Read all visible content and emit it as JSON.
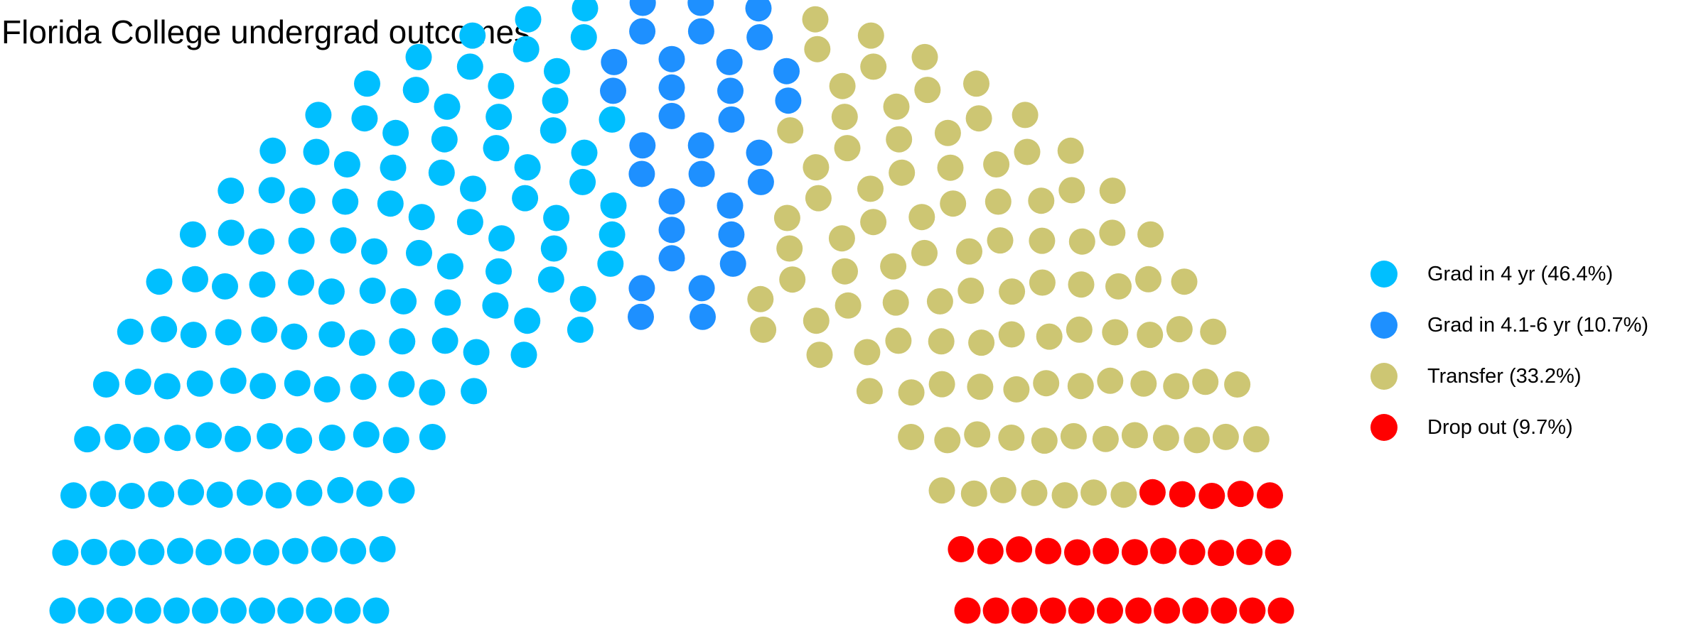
{
  "chart_data": {
    "type": "pie",
    "style": "parliament-semicircle",
    "title": "Florida College undergrad outcomes",
    "total_seats": 300,
    "rows": 12,
    "legend_position": "right",
    "series": [
      {
        "name": "Grad in 4 yr (46.4%)",
        "percent": 46.4,
        "seats": 139,
        "color": "#00BFFF"
      },
      {
        "name": "Grad in 4.1-6 yr (10.7%)",
        "percent": 10.7,
        "seats": 32,
        "color": "#1E90FF"
      },
      {
        "name": "Transfer (33.2%)",
        "percent": 33.2,
        "seats": 100,
        "color": "#CDC673"
      },
      {
        "name": "Drop out (9.7%)",
        "percent": 9.7,
        "seats": 29,
        "color": "#FF0000"
      }
    ]
  }
}
